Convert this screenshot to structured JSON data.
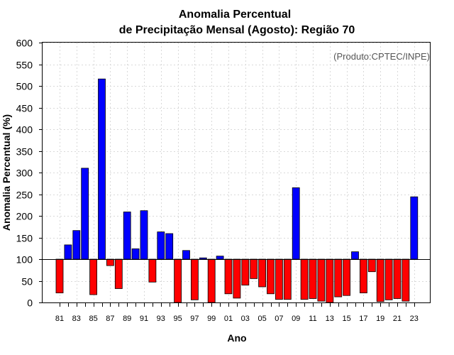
{
  "chart_data": {
    "type": "bar",
    "title": "Anomalia Percentual",
    "subtitle": "de Precipitação Mensal (Agosto): Região 70",
    "ylabel": "Anomalia Percentual (%)",
    "xlabel": "Ano",
    "credit": "(Produto:CPTEC/INPE)",
    "ylim": [
      0,
      600
    ],
    "yticks": [
      0,
      50,
      100,
      150,
      200,
      250,
      300,
      350,
      400,
      450,
      500,
      550,
      600
    ],
    "baseline": 100,
    "grid": true,
    "colors": {
      "above": "#0000ff",
      "below": "#ff0000",
      "grid": "#d9d9d9"
    },
    "categories": [
      "81",
      "82",
      "83",
      "84",
      "85",
      "86",
      "87",
      "88",
      "89",
      "90",
      "91",
      "92",
      "93",
      "94",
      "95",
      "96",
      "97",
      "98",
      "99",
      "00",
      "01",
      "02",
      "03",
      "04",
      "05",
      "06",
      "07",
      "08",
      "09",
      "10",
      "11",
      "12",
      "13",
      "14",
      "15",
      "16",
      "17",
      "18",
      "19",
      "20",
      "21",
      "22",
      "23"
    ],
    "tick_labels": [
      "81",
      "83",
      "85",
      "87",
      "89",
      "91",
      "93",
      "95",
      "97",
      "99",
      "01",
      "03",
      "05",
      "07",
      "09",
      "11",
      "13",
      "15",
      "17",
      "19",
      "21",
      "23"
    ],
    "values": [
      22,
      133,
      166,
      310,
      18,
      516,
      85,
      32,
      209,
      124,
      212,
      47,
      163,
      159,
      0,
      120,
      6,
      103,
      0,
      107,
      20,
      10,
      40,
      55,
      36,
      20,
      7,
      7,
      265,
      7,
      9,
      3,
      0,
      13,
      16,
      117,
      22,
      71,
      2,
      6,
      9,
      3,
      244
    ]
  }
}
